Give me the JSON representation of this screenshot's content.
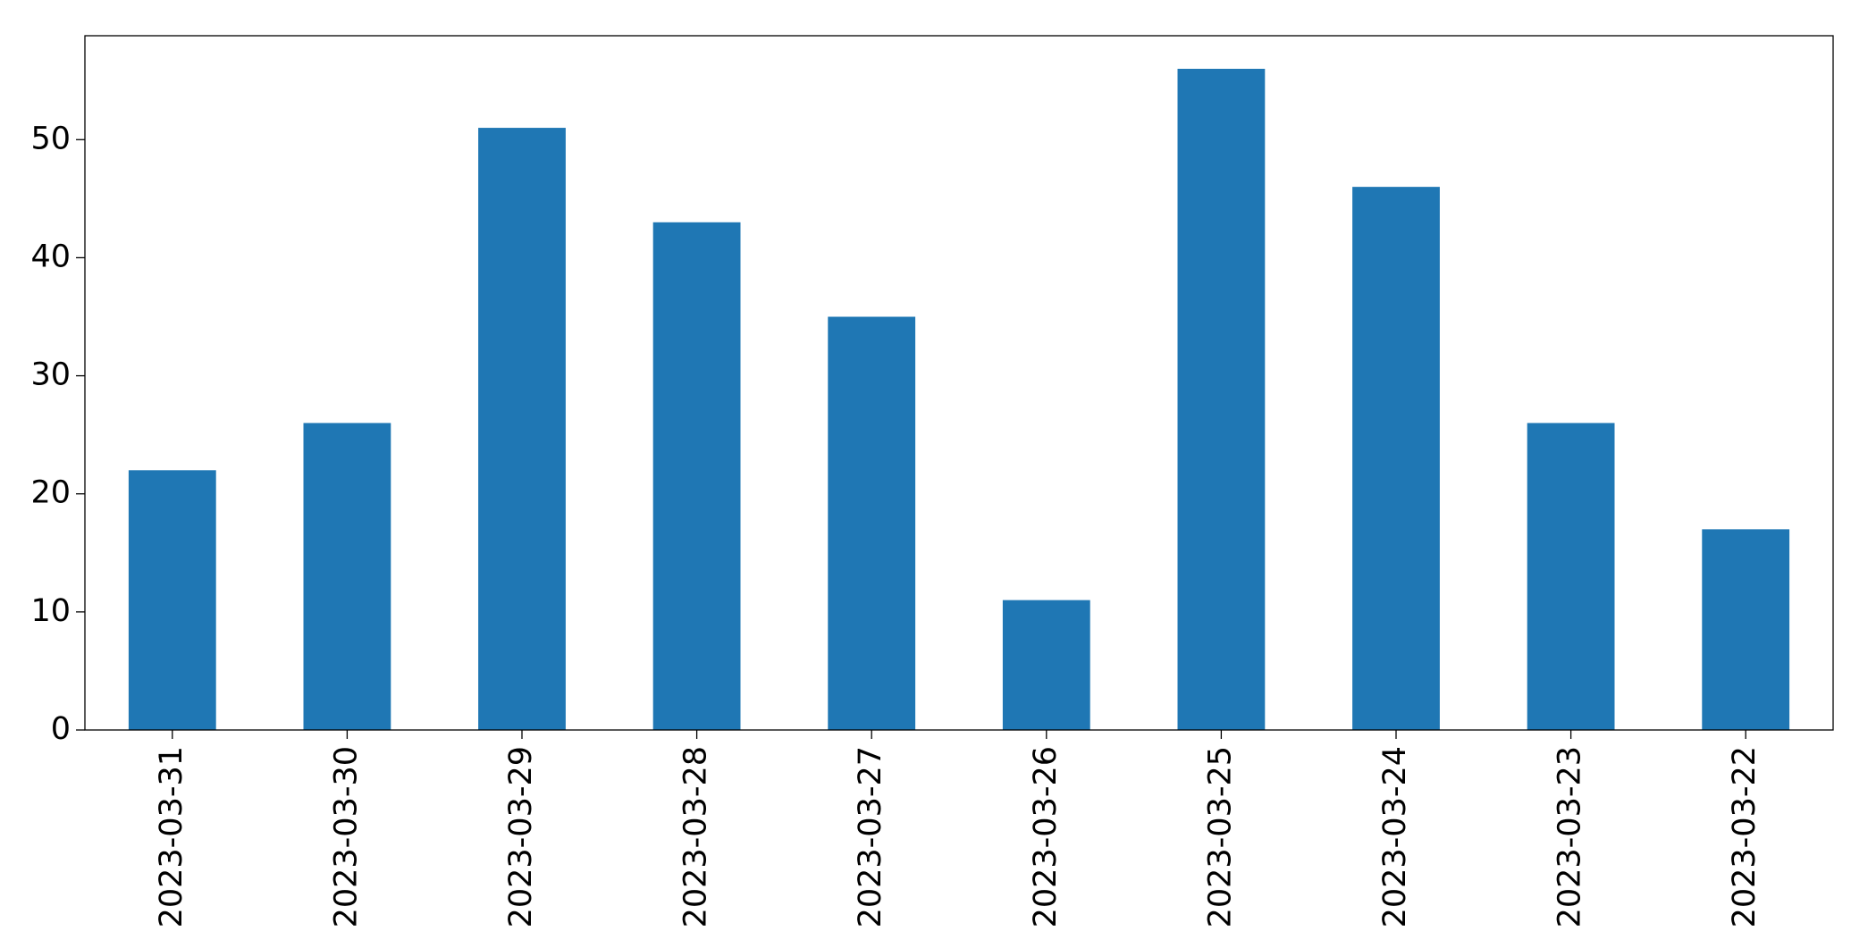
{
  "chart_data": {
    "type": "bar",
    "categories": [
      "2023-03-31",
      "2023-03-30",
      "2023-03-29",
      "2023-03-28",
      "2023-03-27",
      "2023-03-26",
      "2023-03-25",
      "2023-03-24",
      "2023-03-23",
      "2023-03-22"
    ],
    "values": [
      22,
      26,
      51,
      43,
      35,
      11,
      56,
      46,
      26,
      17
    ],
    "color": "#1f77b4",
    "ylim": [
      0,
      58.8
    ],
    "yticks": [
      0,
      10,
      20,
      30,
      40,
      50
    ],
    "grid": false
  }
}
